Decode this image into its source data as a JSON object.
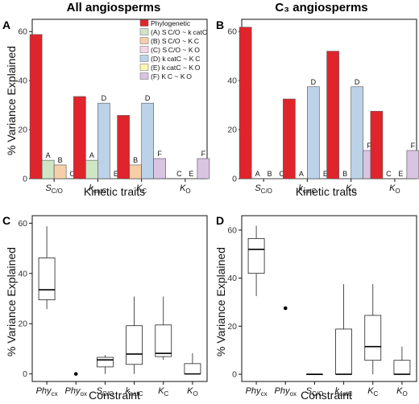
{
  "titles": {
    "left": "All angiosperms",
    "right": "C₃ angiosperms"
  },
  "panel_labels": [
    "A",
    "B",
    "C",
    "D"
  ],
  "y_axis_label": "% Variance Explained",
  "x_axis_labels": {
    "top": "Kinetic traits",
    "bottom": "Constraint"
  },
  "colors": {
    "Phylogenetic": "#e0242b",
    "A": "#cfe6c6",
    "B": "#f6cfa9",
    "C": "#f5d6e2",
    "D": "#bcd2e8",
    "E": "#fbf6b0",
    "F": "#d9c4e2"
  },
  "legend": [
    {
      "key": "Phylogenetic",
      "label": "Phylogenetic"
    },
    {
      "key": "A",
      "label": "(A)  S C/O ~ k catC"
    },
    {
      "key": "B",
      "label": "(B)  S C/O ~ K C"
    },
    {
      "key": "C",
      "label": "(C)  S C/O ~ K O"
    },
    {
      "key": "D",
      "label": "(D)  k catC ~ K C"
    },
    {
      "key": "E",
      "label": "(E)  k catC ~ K O"
    },
    {
      "key": "F",
      "label": "(F)  K C ~ K O"
    }
  ],
  "chart_data": [
    {
      "panel": "A",
      "type": "bar",
      "title": "All angiosperms",
      "xlabel": "Kinetic traits",
      "ylabel": "% Variance Explained",
      "ylim": [
        0,
        65
      ],
      "yticks": [
        0,
        20,
        40,
        60
      ],
      "legend_position": "top-right",
      "categories": [
        {
          "sym": "S",
          "sub": "C/O"
        },
        {
          "sym": "k",
          "sub": "catC"
        },
        {
          "sym": "K",
          "sub": "C"
        },
        {
          "sym": "K",
          "sub": "O"
        }
      ],
      "groups": [
        [
          {
            "key": "Phylogenetic",
            "value": 58.8,
            "label": ""
          },
          {
            "key": "A",
            "value": 7.5,
            "label": "A"
          },
          {
            "key": "B",
            "value": 5.6,
            "label": "B"
          },
          {
            "key": "C",
            "value": 0,
            "label": "C"
          }
        ],
        [
          {
            "key": "Phylogenetic",
            "value": 33.5,
            "label": ""
          },
          {
            "key": "A",
            "value": 7.5,
            "label": "A"
          },
          {
            "key": "D",
            "value": 30.8,
            "label": "D"
          },
          {
            "key": "E",
            "value": 0,
            "label": "E"
          }
        ],
        [
          {
            "key": "Phylogenetic",
            "value": 25.8,
            "label": ""
          },
          {
            "key": "B",
            "value": 5.6,
            "label": "B"
          },
          {
            "key": "D",
            "value": 30.8,
            "label": "D"
          },
          {
            "key": "F",
            "value": 8.2,
            "label": "F"
          }
        ],
        [
          {
            "key": "Phylogenetic",
            "value": 0,
            "label": ""
          },
          {
            "key": "C",
            "value": 0,
            "label": "C"
          },
          {
            "key": "E",
            "value": 0,
            "label": "E"
          },
          {
            "key": "F",
            "value": 8.2,
            "label": "F"
          }
        ]
      ]
    },
    {
      "panel": "B",
      "type": "bar",
      "title": "C₃ angiosperms",
      "xlabel": "Kinetic traits",
      "ylabel": "",
      "ylim": [
        0,
        65
      ],
      "yticks": [
        0,
        20,
        40,
        60
      ],
      "categories": [
        {
          "sym": "S",
          "sub": "C/O"
        },
        {
          "sym": "k",
          "sub": "catC"
        },
        {
          "sym": "K",
          "sub": "C"
        },
        {
          "sym": "K",
          "sub": "O"
        }
      ],
      "groups": [
        [
          {
            "key": "Phylogenetic",
            "value": 61.8,
            "label": ""
          },
          {
            "key": "A",
            "value": 0,
            "label": "A"
          },
          {
            "key": "B",
            "value": 0,
            "label": "B"
          },
          {
            "key": "C",
            "value": 0,
            "label": "C"
          }
        ],
        [
          {
            "key": "Phylogenetic",
            "value": 32.5,
            "label": ""
          },
          {
            "key": "A",
            "value": 0,
            "label": "A"
          },
          {
            "key": "D",
            "value": 37.5,
            "label": "D"
          },
          {
            "key": "E",
            "value": 0,
            "label": "E"
          }
        ],
        [
          {
            "key": "Phylogenetic",
            "value": 52.0,
            "label": ""
          },
          {
            "key": "B",
            "value": 0,
            "label": "B"
          },
          {
            "key": "D",
            "value": 37.5,
            "label": "D"
          },
          {
            "key": "F",
            "value": 11.5,
            "label": "F"
          }
        ],
        [
          {
            "key": "Phylogenetic",
            "value": 27.5,
            "label": ""
          },
          {
            "key": "C",
            "value": 0,
            "label": "C"
          },
          {
            "key": "E",
            "value": 0,
            "label": "E"
          },
          {
            "key": "F",
            "value": 11.5,
            "label": "F"
          }
        ]
      ]
    },
    {
      "panel": "C",
      "type": "box",
      "xlabel": "Constraint",
      "ylabel": "% Variance Explained",
      "ylim": [
        -3,
        63
      ],
      "yticks": [
        0,
        20,
        40,
        60
      ],
      "categories": [
        {
          "sym": "Phy",
          "sub": "cx"
        },
        {
          "sym": "Phy",
          "sub": "ox"
        },
        {
          "sym": "S",
          "sub": "C/O"
        },
        {
          "sym": "k",
          "sub": "catC"
        },
        {
          "sym": "K",
          "sub": "C"
        },
        {
          "sym": "K",
          "sub": "O"
        }
      ],
      "boxes": [
        {
          "min": 25.8,
          "q1": 29.5,
          "median": 33.5,
          "q3": 46.2,
          "max": 58.8,
          "outliers": []
        },
        {
          "min": null,
          "q1": null,
          "median": null,
          "q3": null,
          "max": null,
          "outliers": [
            0
          ]
        },
        {
          "min": 0,
          "q1": 2.8,
          "median": 5.6,
          "q3": 6.6,
          "max": 7.5,
          "outliers": []
        },
        {
          "min": 0,
          "q1": 3.8,
          "median": 7.9,
          "q3": 19.2,
          "max": 30.8,
          "outliers": []
        },
        {
          "min": 5.6,
          "q1": 6.9,
          "median": 8.2,
          "q3": 19.5,
          "max": 30.8,
          "outliers": []
        },
        {
          "min": 0,
          "q1": 0,
          "median": 0,
          "q3": 4.1,
          "max": 8.2,
          "outliers": []
        }
      ]
    },
    {
      "panel": "D",
      "type": "box",
      "xlabel": "Constraint",
      "ylabel": "% Variance Explained",
      "ylim": [
        -3,
        66
      ],
      "yticks": [
        0,
        20,
        40,
        60
      ],
      "categories": [
        {
          "sym": "Phy",
          "sub": "cx"
        },
        {
          "sym": "Phy",
          "sub": "ox"
        },
        {
          "sym": "S",
          "sub": "C/O"
        },
        {
          "sym": "k",
          "sub": "catC"
        },
        {
          "sym": "K",
          "sub": "C"
        },
        {
          "sym": "K",
          "sub": "O"
        }
      ],
      "boxes": [
        {
          "min": 32.5,
          "q1": 42.0,
          "median": 52.0,
          "q3": 56.5,
          "max": 61.8,
          "outliers": []
        },
        {
          "min": null,
          "q1": null,
          "median": null,
          "q3": null,
          "max": null,
          "outliers": [
            27.5
          ]
        },
        {
          "min": 0,
          "q1": 0,
          "median": 0,
          "q3": 0,
          "max": 0,
          "outliers": []
        },
        {
          "min": 0,
          "q1": 0,
          "median": 0,
          "q3": 18.8,
          "max": 37.5,
          "outliers": []
        },
        {
          "min": 0,
          "q1": 5.8,
          "median": 11.5,
          "q3": 24.5,
          "max": 37.5,
          "outliers": []
        },
        {
          "min": 0,
          "q1": 0,
          "median": 0,
          "q3": 5.8,
          "max": 11.5,
          "outliers": []
        }
      ]
    }
  ]
}
